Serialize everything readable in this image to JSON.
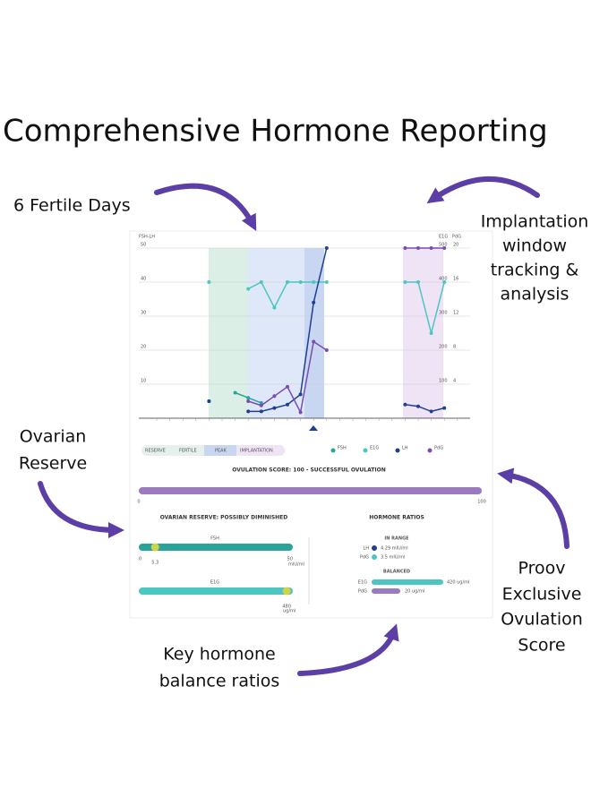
{
  "header": {
    "title": "Comprehensive Hormone Reporting"
  },
  "annotations": {
    "fertile_days": "6 Fertile Days",
    "implantation": [
      "Implantation",
      "window",
      "tracking &",
      "analysis"
    ],
    "ovarian": [
      "Ovarian",
      "Reserve"
    ],
    "ovulation_score": [
      "Proov",
      "Exclusive",
      "Ovulation",
      "Score"
    ],
    "ratios": [
      "Key hormone",
      "balance ratios"
    ]
  },
  "chart_data": {
    "type": "line",
    "y_label": "FSH-LH",
    "y2_label": "E1G",
    "y3_label": "PdG",
    "categories": [
      null,
      null,
      null,
      null,
      null,
      null,
      null,
      null,
      null,
      null,
      null,
      null,
      null,
      null,
      null,
      null,
      null,
      null,
      null,
      null,
      null,
      null,
      null,
      null
    ],
    "ylim": [
      0,
      50
    ],
    "yticks": [
      10,
      20,
      30,
      40,
      50
    ],
    "y2lim": [
      0,
      500
    ],
    "y2ticks": [
      100,
      200,
      300,
      400,
      500
    ],
    "y3lim": [
      0,
      20
    ],
    "y3ticks": [
      4,
      8,
      12,
      16,
      20
    ],
    "grid": true,
    "series": [
      {
        "name": "FSH",
        "color": "#2aa39a",
        "axis": "y",
        "values": [
          null,
          null,
          null,
          null,
          5,
          null,
          7.5,
          6,
          4.5,
          null,
          null,
          null,
          null,
          null,
          null,
          null,
          null,
          null,
          null,
          null,
          null,
          null,
          null,
          null
        ]
      },
      {
        "name": "E1G",
        "color": "#4cc6c0",
        "axis": "y2",
        "values": [
          null,
          null,
          null,
          null,
          400,
          null,
          null,
          380,
          400,
          325,
          400,
          400,
          400,
          400,
          null,
          null,
          null,
          null,
          null,
          400,
          400,
          250,
          400,
          null
        ]
      },
      {
        "name": "LH",
        "color": "#1f3f8f",
        "axis": "y",
        "values": [
          null,
          null,
          null,
          null,
          5,
          null,
          null,
          2,
          2,
          3,
          4,
          7,
          34,
          50,
          null,
          null,
          null,
          null,
          null,
          4,
          3.5,
          2,
          3,
          null
        ]
      },
      {
        "name": "PdG",
        "color": "#7a4cb0",
        "axis": "y3",
        "values": [
          null,
          null,
          null,
          null,
          null,
          null,
          null,
          2,
          1.5,
          2.6,
          3.7,
          0.7,
          9,
          8,
          null,
          null,
          null,
          null,
          null,
          20,
          20,
          20,
          20,
          null
        ]
      }
    ],
    "phase_legend": [
      "RESERVE",
      "FERTILE",
      "PEAK",
      "IMPLANTATION"
    ]
  },
  "ovulation": {
    "title": "OVULATION SCORE: 100 - SUCCESSFUL OVULATION",
    "value": 100,
    "lim": [
      0,
      100
    ],
    "ticks": [
      0,
      100
    ]
  },
  "ovarian_reserve": {
    "title": "OVARIAN RESERVE: POSSIBLY DIMINISHED",
    "fsh": {
      "label": "FSH",
      "value": 5.3,
      "lim": [
        0,
        50
      ],
      "ticks": [
        0,
        50
      ],
      "unit": "mIU/ml"
    },
    "e1g": {
      "label": "E1G",
      "value": 480,
      "lim": [
        0,
        500
      ],
      "unit": "ug/ml"
    }
  },
  "hormone_ratios": {
    "title": "HORMONE RATIOS",
    "in_range": "IN RANGE",
    "rows1": [
      [
        "LH",
        "4.29 mIU/ml"
      ],
      [
        "PdG",
        "3.5 mIU/ml"
      ]
    ],
    "balanced": "BALANCED",
    "rows2": [
      [
        "E1G",
        "420 ug/ml"
      ],
      [
        "PdG",
        "20 ug/ml"
      ]
    ]
  }
}
